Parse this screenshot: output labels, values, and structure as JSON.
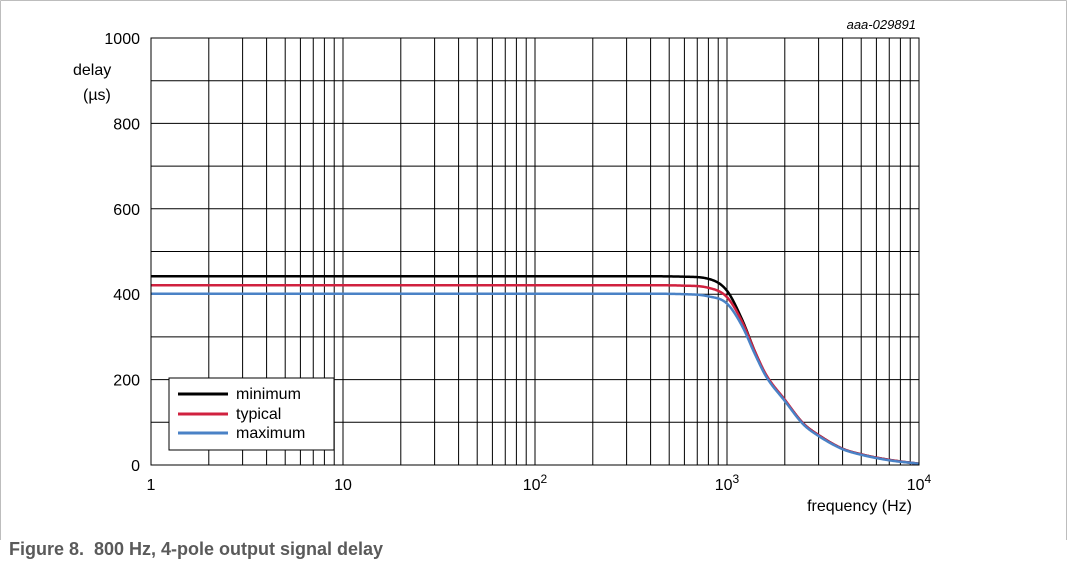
{
  "chart_data": {
    "type": "line",
    "figure_id": "aaa-029891",
    "ylabel_line1": "delay",
    "ylabel_line2": "(µs)",
    "xlabel": "frequency (Hz)",
    "x_scale": "log",
    "xlim": [
      1,
      10000
    ],
    "ylim": [
      0,
      1000
    ],
    "x_ticks": [
      {
        "value": 1,
        "base": "1",
        "exp": ""
      },
      {
        "value": 10,
        "base": "10",
        "exp": ""
      },
      {
        "value": 100,
        "base": "10",
        "exp": "2"
      },
      {
        "value": 1000,
        "base": "10",
        "exp": "3"
      },
      {
        "value": 10000,
        "base": "10",
        "exp": "4"
      }
    ],
    "y_ticks": [
      0,
      200,
      400,
      600,
      800,
      1000
    ],
    "y_minor_step": 100,
    "grid": true,
    "legend_position": "bottom-left",
    "series": [
      {
        "name": "minimum",
        "color": "#000000",
        "x": [
          1,
          10,
          100,
          400,
          600,
          800,
          1000,
          1200,
          1400,
          1600,
          2000,
          2500,
          3000,
          4000,
          5000,
          7000,
          10000
        ],
        "y": [
          442,
          442,
          442,
          442,
          441,
          436,
          408,
          340,
          265,
          210,
          152,
          97,
          70,
          38,
          25,
          12,
          3
        ]
      },
      {
        "name": "typical",
        "color": "#d0213f",
        "x": [
          1,
          10,
          100,
          400,
          600,
          800,
          1000,
          1200,
          1400,
          1600,
          2000,
          2500,
          3000,
          4000,
          5000,
          7000,
          10000
        ],
        "y": [
          421,
          421,
          421,
          421,
          420,
          415,
          393,
          335,
          265,
          211,
          153,
          97,
          70,
          38,
          25,
          12,
          3
        ]
      },
      {
        "name": "maximum",
        "color": "#4a82c6",
        "x": [
          1,
          10,
          100,
          400,
          600,
          800,
          1000,
          1200,
          1400,
          1600,
          2000,
          2500,
          3000,
          4000,
          5000,
          7000,
          10000
        ],
        "y": [
          401,
          401,
          401,
          401,
          400,
          395,
          378,
          325,
          259,
          207,
          150,
          95,
          68,
          37,
          24,
          11,
          3
        ]
      }
    ]
  },
  "caption": {
    "number": "Figure 8.",
    "text": "800 Hz, 4-pole output signal delay"
  }
}
